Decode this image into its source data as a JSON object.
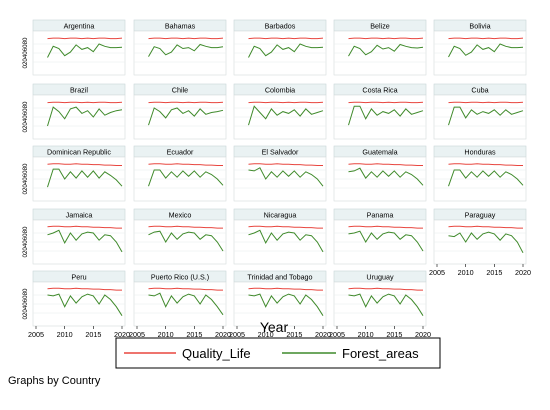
{
  "chart_data": {
    "type": "line",
    "layout": "small-multiples-5-columns",
    "x_tick_labels": [
      "2005",
      "2010",
      "2015",
      "2020"
    ],
    "y_tick_label": "020406080",
    "xlim": [
      2005,
      2020
    ],
    "ylim": [
      0,
      80
    ],
    "grid": true,
    "xlabel": "Year",
    "note": "Graphs by Country",
    "legend_position": "bottom",
    "colors": {
      "Quality_Life": "#e8463f",
      "Forest_areas": "#3f8a2b"
    },
    "x": [
      2007,
      2008,
      2009,
      2010,
      2011,
      2012,
      2013,
      2014,
      2015,
      2016,
      2017,
      2018,
      2019,
      2020
    ],
    "panels": [
      {
        "country": "Argentina",
        "series": [
          {
            "name": "Quality_Life",
            "values": [
              72,
              73,
              73,
              72,
              73,
              73,
              72,
              73,
              72,
              73,
              73,
              72,
              72,
              73
            ]
          },
          {
            "name": "Forest_areas",
            "values": [
              30,
              55,
              50,
              34,
              42,
              58,
              48,
              52,
              43,
              60,
              55,
              52,
              52,
              53
            ]
          }
        ]
      },
      {
        "country": "Bahamas",
        "series": [
          {
            "name": "Quality_Life",
            "values": [
              72,
              73,
              73,
              72,
              73,
              73,
              72,
              73,
              72,
              73,
              73,
              72,
              72,
              73
            ]
          },
          {
            "name": "Forest_areas",
            "values": [
              32,
              54,
              50,
              36,
              42,
              58,
              50,
              52,
              45,
              59,
              55,
              52,
              52,
              54
            ]
          }
        ]
      },
      {
        "country": "Barbados",
        "series": [
          {
            "name": "Quality_Life",
            "values": [
              72,
              73,
              73,
              72,
              73,
              73,
              72,
              73,
              72,
              73,
              73,
              72,
              72,
              73
            ]
          },
          {
            "name": "Forest_areas",
            "values": [
              30,
              55,
              50,
              34,
              42,
              58,
              48,
              52,
              43,
              60,
              55,
              52,
              52,
              53
            ]
          }
        ]
      },
      {
        "country": "Belize",
        "series": [
          {
            "name": "Quality_Life",
            "values": [
              72,
              73,
              73,
              72,
              73,
              73,
              72,
              73,
              72,
              73,
              73,
              72,
              72,
              73
            ]
          },
          {
            "name": "Forest_areas",
            "values": [
              33,
              55,
              50,
              36,
              43,
              57,
              49,
              52,
              44,
              59,
              55,
              52,
              51,
              53
            ]
          }
        ]
      },
      {
        "country": "Bolivia",
        "series": [
          {
            "name": "Quality_Life",
            "values": [
              72,
              73,
              73,
              72,
              73,
              73,
              72,
              73,
              72,
              73,
              73,
              72,
              72,
              73
            ]
          },
          {
            "name": "Forest_areas",
            "values": [
              31,
              55,
              50,
              35,
              42,
              58,
              48,
              52,
              43,
              60,
              55,
              52,
              52,
              53
            ]
          }
        ]
      },
      {
        "country": "Brazil",
        "series": [
          {
            "name": "Quality_Life",
            "values": [
              72,
              73,
              73,
              72,
              73,
              73,
              72,
              73,
              72,
              73,
              73,
              72,
              72,
              73
            ]
          },
          {
            "name": "Forest_areas",
            "values": [
              20,
              62,
              52,
              36,
              58,
              62,
              48,
              54,
              40,
              58,
              44,
              50,
              54,
              56
            ]
          }
        ]
      },
      {
        "country": "Chile",
        "series": [
          {
            "name": "Quality_Life",
            "values": [
              72,
              73,
              73,
              72,
              73,
              73,
              72,
              73,
              72,
              73,
              73,
              72,
              72,
              73
            ]
          },
          {
            "name": "Forest_areas",
            "values": [
              22,
              60,
              52,
              38,
              56,
              60,
              48,
              54,
              42,
              58,
              46,
              50,
              52,
              55
            ]
          }
        ]
      },
      {
        "country": "Colombia",
        "series": [
          {
            "name": "Quality_Life",
            "values": [
              72,
              73,
              73,
              72,
              73,
              73,
              72,
              73,
              72,
              73,
              73,
              72,
              72,
              73
            ]
          },
          {
            "name": "Forest_areas",
            "values": [
              22,
              64,
              50,
              36,
              58,
              44,
              52,
              48,
              56,
              42,
              58,
              46,
              50,
              54
            ]
          }
        ]
      },
      {
        "country": "Costa Rica",
        "series": [
          {
            "name": "Quality_Life",
            "values": [
              72,
              73,
              73,
              72,
              73,
              73,
              72,
              73,
              72,
              73,
              73,
              72,
              72,
              73
            ]
          },
          {
            "name": "Forest_areas",
            "values": [
              22,
              64,
              64,
              36,
              58,
              44,
              52,
              48,
              56,
              42,
              58,
              46,
              50,
              54
            ]
          }
        ]
      },
      {
        "country": "Cuba",
        "series": [
          {
            "name": "Quality_Life",
            "values": [
              72,
              73,
              73,
              72,
              73,
              73,
              72,
              73,
              72,
              73,
              73,
              72,
              72,
              73
            ]
          },
          {
            "name": "Forest_areas",
            "values": [
              22,
              62,
              62,
              38,
              56,
              46,
              52,
              48,
              56,
              44,
              56,
              46,
              50,
              54
            ]
          }
        ]
      },
      {
        "country": "Dominican Republic",
        "series": [
          {
            "name": "Quality_Life",
            "values": [
              73,
              74,
              74,
              73,
              73,
              74,
              73,
              73,
              72,
              72,
              71,
              71,
              70,
              70
            ]
          },
          {
            "name": "Forest_areas",
            "values": [
              22,
              62,
              62,
              40,
              56,
              42,
              58,
              44,
              58,
              42,
              56,
              48,
              38,
              24
            ]
          }
        ]
      },
      {
        "country": "Ecuador",
        "series": [
          {
            "name": "Quality_Life",
            "values": [
              73,
              74,
              74,
              73,
              73,
              74,
              73,
              73,
              72,
              72,
              71,
              71,
              70,
              70
            ]
          },
          {
            "name": "Forest_areas",
            "values": [
              24,
              60,
              60,
              42,
              56,
              44,
              58,
              46,
              58,
              44,
              56,
              50,
              40,
              26
            ]
          }
        ]
      },
      {
        "country": "El Salvador",
        "series": [
          {
            "name": "Quality_Life",
            "values": [
              73,
              74,
              74,
              73,
              73,
              74,
              73,
              73,
              72,
              72,
              71,
              71,
              70,
              70
            ]
          },
          {
            "name": "Forest_areas",
            "values": [
              60,
              58,
              65,
              40,
              56,
              44,
              58,
              46,
              58,
              44,
              56,
              50,
              40,
              24
            ]
          }
        ]
      },
      {
        "country": "Guatemala",
        "series": [
          {
            "name": "Quality_Life",
            "values": [
              73,
              74,
              74,
              73,
              73,
              74,
              73,
              73,
              72,
              72,
              71,
              71,
              70,
              70
            ]
          },
          {
            "name": "Forest_areas",
            "values": [
              56,
              58,
              64,
              42,
              56,
              44,
              58,
              46,
              58,
              44,
              56,
              50,
              40,
              26
            ]
          }
        ]
      },
      {
        "country": "Honduras",
        "series": [
          {
            "name": "Quality_Life",
            "values": [
              73,
              74,
              74,
              73,
              73,
              74,
              73,
              73,
              72,
              72,
              71,
              71,
              70,
              70
            ]
          },
          {
            "name": "Forest_areas",
            "values": [
              24,
              60,
              60,
              42,
              56,
              44,
              58,
              46,
              58,
              44,
              56,
              50,
              40,
              26
            ]
          }
        ]
      },
      {
        "country": "Jamaica",
        "series": [
          {
            "name": "Quality_Life",
            "values": [
              74,
              75,
              75,
              74,
              74,
              75,
              74,
              74,
              73,
              73,
              72,
              72,
              71,
              71
            ]
          },
          {
            "name": "Forest_areas",
            "values": [
              56,
              60,
              66,
              38,
              60,
              44,
              58,
              62,
              60,
              44,
              56,
              54,
              40,
              18
            ]
          }
        ]
      },
      {
        "country": "Mexico",
        "series": [
          {
            "name": "Quality_Life",
            "values": [
              74,
              75,
              75,
              74,
              74,
              75,
              74,
              74,
              73,
              73,
              72,
              72,
              71,
              71
            ]
          },
          {
            "name": "Forest_areas",
            "values": [
              56,
              62,
              64,
              40,
              60,
              46,
              58,
              62,
              60,
              46,
              56,
              54,
              40,
              20
            ]
          }
        ]
      },
      {
        "country": "Nicaragua",
        "series": [
          {
            "name": "Quality_Life",
            "values": [
              74,
              75,
              75,
              74,
              74,
              75,
              74,
              74,
              73,
              73,
              72,
              72,
              71,
              71
            ]
          },
          {
            "name": "Forest_areas",
            "values": [
              56,
              60,
              66,
              38,
              60,
              44,
              58,
              62,
              60,
              44,
              56,
              54,
              40,
              18
            ]
          }
        ]
      },
      {
        "country": "Panama",
        "series": [
          {
            "name": "Quality_Life",
            "values": [
              74,
              75,
              75,
              74,
              74,
              75,
              74,
              74,
              73,
              73,
              72,
              72,
              71,
              71
            ]
          },
          {
            "name": "Forest_areas",
            "values": [
              58,
              60,
              64,
              40,
              60,
              46,
              58,
              62,
              60,
              46,
              56,
              54,
              40,
              20
            ]
          }
        ]
      },
      {
        "country": "Paraguay",
        "series": [
          {
            "name": "Quality_Life",
            "values": [
              74,
              75,
              75,
              74,
              74,
              75,
              74,
              74,
              73,
              73,
              72,
              72,
              71,
              71
            ]
          },
          {
            "name": "Forest_areas",
            "values": [
              54,
              52,
              60,
              40,
              60,
              46,
              58,
              62,
              58,
              44,
              58,
              54,
              40,
              16
            ]
          }
        ]
      },
      {
        "country": "Peru",
        "series": [
          {
            "name": "Quality_Life",
            "values": [
              74,
              75,
              75,
              74,
              74,
              75,
              74,
              74,
              73,
              73,
              72,
              72,
              71,
              71
            ]
          },
          {
            "name": "Forest_areas",
            "values": [
              60,
              58,
              62,
              34,
              58,
              42,
              56,
              62,
              58,
              40,
              60,
              50,
              34,
              14
            ]
          }
        ]
      },
      {
        "country": "Puerto Rico (U.S.)",
        "series": [
          {
            "name": "Quality_Life",
            "values": [
              74,
              75,
              75,
              74,
              74,
              75,
              74,
              74,
              73,
              73,
              72,
              72,
              71,
              71
            ]
          },
          {
            "name": "Forest_areas",
            "values": [
              60,
              58,
              64,
              34,
              58,
              42,
              56,
              62,
              58,
              40,
              60,
              50,
              34,
              16
            ]
          }
        ]
      },
      {
        "country": "Trinidad and Tobago",
        "series": [
          {
            "name": "Quality_Life",
            "values": [
              74,
              75,
              75,
              74,
              74,
              75,
              74,
              74,
              73,
              73,
              72,
              72,
              71,
              71
            ]
          },
          {
            "name": "Forest_areas",
            "values": [
              60,
              58,
              62,
              34,
              58,
              42,
              56,
              62,
              58,
              40,
              60,
              50,
              34,
              14
            ]
          }
        ]
      },
      {
        "country": "Uruguay",
        "series": [
          {
            "name": "Quality_Life",
            "values": [
              74,
              75,
              75,
              74,
              74,
              75,
              74,
              74,
              73,
              73,
              72,
              72,
              71,
              71
            ]
          },
          {
            "name": "Forest_areas",
            "values": [
              60,
              58,
              62,
              34,
              58,
              42,
              56,
              62,
              58,
              40,
              60,
              50,
              34,
              14
            ]
          }
        ]
      }
    ]
  }
}
